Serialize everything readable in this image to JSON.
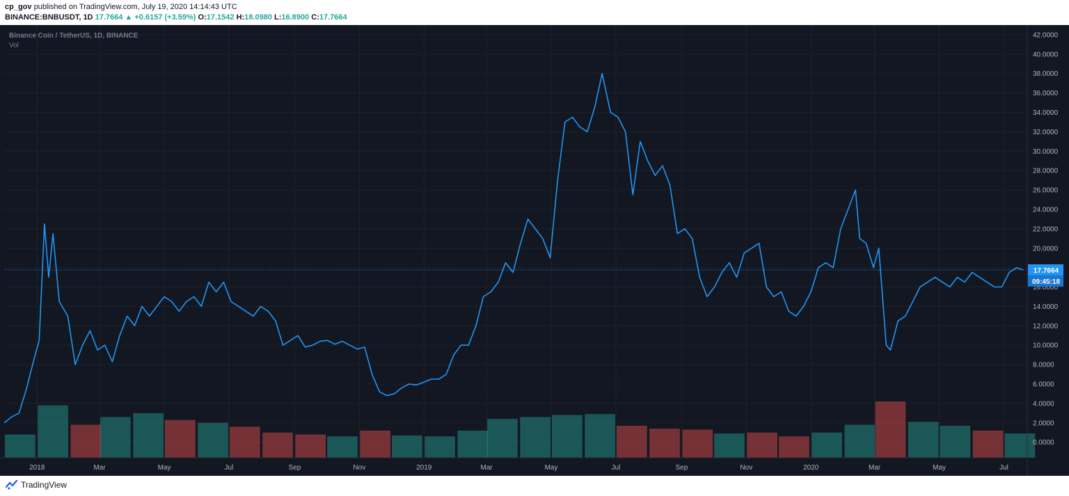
{
  "header": {
    "author": "cp_gov",
    "published_text": "published on TradingView.com, July 19, 2020 14:14:43 UTC",
    "ticker": "BINANCE:BNBUSDT, 1D",
    "last": "17.7664",
    "change_arrow": "▲",
    "change": "+0.6157 (+3.59%)",
    "o_label": "O:",
    "o_value": "17.1542",
    "h_label": "H:",
    "h_value": "18.0980",
    "l_label": "L:",
    "l_value": "16.8900",
    "c_label": "C:",
    "c_value": "17.7664"
  },
  "pane": {
    "symbol_title": "Binance Coin / TetherUS, 1D, BINANCE",
    "vol_label": "Vol",
    "price_label": "17.7664",
    "countdown": "09:45:18"
  },
  "footer": {
    "brand": "TradingView",
    "logo_icon": "tradingview-logo-icon"
  },
  "colors": {
    "background": "#131722",
    "line": "#2196f3",
    "vol_up": "#26a69a",
    "vol_down": "#ef5350",
    "grid": "#1e222d",
    "axis_text": "#b2b5be"
  },
  "chart_data": {
    "type": "line",
    "title": "Binance Coin / TetherUS, 1D, BINANCE",
    "series": [
      {
        "name": "BNBUSDT",
        "x": [
          "2017-12-01",
          "2017-12-08",
          "2017-12-15",
          "2017-12-22",
          "2017-12-29",
          "2018-01-03",
          "2018-01-08",
          "2018-01-12",
          "2018-01-16",
          "2018-01-22",
          "2018-01-30",
          "2018-02-06",
          "2018-02-13",
          "2018-02-20",
          "2018-02-27",
          "2018-03-06",
          "2018-03-13",
          "2018-03-20",
          "2018-03-27",
          "2018-04-03",
          "2018-04-10",
          "2018-04-17",
          "2018-04-24",
          "2018-05-01",
          "2018-05-08",
          "2018-05-15",
          "2018-05-22",
          "2018-05-29",
          "2018-06-05",
          "2018-06-12",
          "2018-06-19",
          "2018-06-26",
          "2018-07-03",
          "2018-07-10",
          "2018-07-17",
          "2018-07-24",
          "2018-07-31",
          "2018-08-07",
          "2018-08-14",
          "2018-08-21",
          "2018-08-28",
          "2018-09-04",
          "2018-09-11",
          "2018-09-18",
          "2018-09-25",
          "2018-10-02",
          "2018-10-09",
          "2018-10-16",
          "2018-10-23",
          "2018-10-30",
          "2018-11-06",
          "2018-11-13",
          "2018-11-20",
          "2018-11-27",
          "2018-12-04",
          "2018-12-11",
          "2018-12-18",
          "2018-12-25",
          "2019-01-01",
          "2019-01-08",
          "2019-01-15",
          "2019-01-22",
          "2019-01-29",
          "2019-02-05",
          "2019-02-12",
          "2019-02-19",
          "2019-02-26",
          "2019-03-05",
          "2019-03-12",
          "2019-03-19",
          "2019-03-26",
          "2019-04-02",
          "2019-04-09",
          "2019-04-16",
          "2019-04-23",
          "2019-04-30",
          "2019-05-07",
          "2019-05-14",
          "2019-05-21",
          "2019-05-28",
          "2019-06-04",
          "2019-06-11",
          "2019-06-18",
          "2019-06-22",
          "2019-06-26",
          "2019-07-03",
          "2019-07-10",
          "2019-07-17",
          "2019-07-24",
          "2019-07-31",
          "2019-08-07",
          "2019-08-14",
          "2019-08-21",
          "2019-08-28",
          "2019-09-04",
          "2019-09-11",
          "2019-09-18",
          "2019-09-25",
          "2019-10-02",
          "2019-10-09",
          "2019-10-16",
          "2019-10-23",
          "2019-10-30",
          "2019-11-06",
          "2019-11-13",
          "2019-11-20",
          "2019-11-27",
          "2019-12-04",
          "2019-12-11",
          "2019-12-18",
          "2019-12-25",
          "2020-01-01",
          "2020-01-08",
          "2020-01-15",
          "2020-01-22",
          "2020-01-29",
          "2020-02-05",
          "2020-02-12",
          "2020-02-16",
          "2020-02-22",
          "2020-02-29",
          "2020-03-05",
          "2020-03-12",
          "2020-03-16",
          "2020-03-23",
          "2020-03-30",
          "2020-04-06",
          "2020-04-13",
          "2020-04-20",
          "2020-04-27",
          "2020-05-04",
          "2020-05-11",
          "2020-05-18",
          "2020-05-25",
          "2020-06-01",
          "2020-06-08",
          "2020-06-15",
          "2020-06-22",
          "2020-06-29",
          "2020-07-06",
          "2020-07-13",
          "2020-07-19"
        ],
        "y": [
          2.0,
          2.6,
          3.0,
          5.5,
          8.5,
          10.5,
          22.5,
          17.0,
          21.5,
          14.5,
          13.0,
          8.0,
          10.0,
          11.5,
          9.5,
          10.0,
          8.3,
          11.0,
          13.0,
          12.0,
          14.0,
          13.0,
          14.0,
          15.0,
          14.5,
          13.5,
          14.5,
          15.0,
          14.0,
          16.5,
          15.5,
          16.5,
          14.5,
          14.0,
          13.5,
          13.0,
          14.0,
          13.5,
          12.5,
          10.0,
          10.5,
          11.0,
          9.8,
          10.0,
          10.4,
          10.5,
          10.1,
          10.4,
          10.0,
          9.6,
          9.8,
          7.0,
          5.2,
          4.8,
          5.0,
          5.6,
          6.0,
          5.9,
          6.2,
          6.5,
          6.5,
          7.0,
          9.0,
          10.0,
          10.0,
          12.0,
          15.0,
          15.5,
          16.5,
          18.5,
          17.5,
          20.5,
          23.0,
          22.0,
          21.0,
          19.0,
          27.0,
          33.0,
          33.5,
          32.5,
          32.0,
          34.5,
          38.0,
          36.0,
          34.0,
          33.5,
          32.0,
          25.5,
          31.0,
          29.0,
          27.5,
          28.5,
          26.5,
          21.5,
          22.0,
          21.0,
          17.0,
          15.0,
          16.0,
          17.5,
          18.5,
          17.0,
          19.5,
          20.0,
          20.5,
          16.0,
          15.0,
          15.5,
          13.5,
          13.0,
          14.0,
          15.5,
          18.0,
          18.5,
          18.0,
          22.0,
          24.0,
          26.0,
          21.0,
          20.5,
          18.0,
          20.0,
          10.0,
          9.5,
          12.5,
          13.0,
          14.5,
          16.0,
          16.5,
          17.0,
          16.5,
          16.0,
          17.0,
          16.5,
          17.5,
          17.0,
          16.5,
          16.0,
          16.0,
          17.5,
          18.0,
          17.7664
        ]
      }
    ],
    "volume": {
      "name": "Vol",
      "x": [
        "2017-12",
        "2018-01",
        "2018-02",
        "2018-03",
        "2018-04",
        "2018-05",
        "2018-06",
        "2018-07",
        "2018-08",
        "2018-09",
        "2018-10",
        "2018-11",
        "2018-12",
        "2019-01",
        "2019-02",
        "2019-03",
        "2019-04",
        "2019-05",
        "2019-06",
        "2019-07",
        "2019-08",
        "2019-09",
        "2019-10",
        "2019-11",
        "2019-12",
        "2020-01",
        "2020-02",
        "2020-03",
        "2020-04",
        "2020-05",
        "2020-06",
        "2020-07"
      ],
      "values": [
        0.8,
        3.8,
        1.8,
        2.6,
        3.0,
        2.3,
        2.0,
        1.6,
        1.0,
        0.8,
        0.6,
        1.2,
        0.7,
        0.6,
        1.2,
        2.4,
        2.6,
        2.8,
        2.9,
        1.7,
        1.4,
        1.3,
        0.9,
        1.0,
        0.6,
        1.0,
        1.8,
        4.2,
        2.1,
        1.7,
        1.2,
        0.9
      ],
      "up": [
        true,
        true,
        false,
        true,
        true,
        false,
        true,
        false,
        false,
        false,
        true,
        false,
        true,
        true,
        true,
        true,
        true,
        true,
        true,
        false,
        false,
        false,
        true,
        false,
        false,
        true,
        true,
        false,
        true,
        true,
        false,
        true
      ]
    },
    "ylim": [
      -1.6,
      43
    ],
    "yticks": [
      "42.0000",
      "40.0000",
      "38.0000",
      "36.0000",
      "34.0000",
      "32.0000",
      "30.0000",
      "28.0000",
      "26.0000",
      "24.0000",
      "22.0000",
      "20.0000",
      "18.0000",
      "16.0000",
      "14.0000",
      "12.0000",
      "10.0000",
      "8.0000",
      "6.0000",
      "4.0000",
      "2.0000",
      "0.0000"
    ],
    "xticks": [
      {
        "label": "2018",
        "date": "2018-01-01"
      },
      {
        "label": "Mar",
        "date": "2018-03-01"
      },
      {
        "label": "May",
        "date": "2018-05-01"
      },
      {
        "label": "Jul",
        "date": "2018-07-01"
      },
      {
        "label": "Sep",
        "date": "2018-09-01"
      },
      {
        "label": "Nov",
        "date": "2018-11-01"
      },
      {
        "label": "2019",
        "date": "2019-01-01"
      },
      {
        "label": "Mar",
        "date": "2019-03-01"
      },
      {
        "label": "May",
        "date": "2019-05-01"
      },
      {
        "label": "Jul",
        "date": "2019-07-01"
      },
      {
        "label": "Sep",
        "date": "2019-09-01"
      },
      {
        "label": "Nov",
        "date": "2019-11-01"
      },
      {
        "label": "2020",
        "date": "2020-01-01"
      },
      {
        "label": "Mar",
        "date": "2020-03-01"
      },
      {
        "label": "May",
        "date": "2020-05-01"
      },
      {
        "label": "Jul",
        "date": "2020-07-01"
      }
    ],
    "last_price": 17.7664,
    "grid": true
  }
}
